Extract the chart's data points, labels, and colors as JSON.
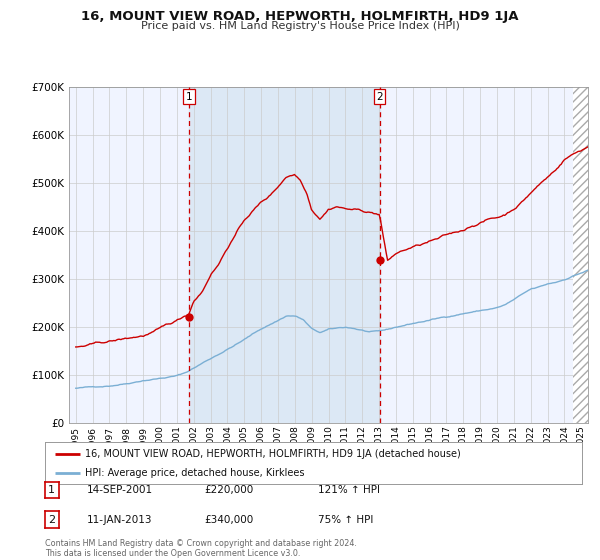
{
  "title": "16, MOUNT VIEW ROAD, HEPWORTH, HOLMFIRTH, HD9 1JA",
  "subtitle": "Price paid vs. HM Land Registry's House Price Index (HPI)",
  "legend_line1": "16, MOUNT VIEW ROAD, HEPWORTH, HOLMFIRTH, HD9 1JA (detached house)",
  "legend_line2": "HPI: Average price, detached house, Kirklees",
  "transaction1_date": "14-SEP-2001",
  "transaction1_price": "£220,000",
  "transaction1_pct": "121% ↑ HPI",
  "transaction2_date": "11-JAN-2013",
  "transaction2_price": "£340,000",
  "transaction2_pct": "75% ↑ HPI",
  "footer": "Contains HM Land Registry data © Crown copyright and database right 2024.\nThis data is licensed under the Open Government Licence v3.0.",
  "red_color": "#cc0000",
  "blue_color": "#7bafd4",
  "bg_color": "#ffffff",
  "plot_bg": "#f0f4ff",
  "shade_color": "#dce8f5",
  "grid_color": "#cccccc",
  "ylim": [
    0,
    700000
  ],
  "yticks": [
    0,
    100000,
    200000,
    300000,
    400000,
    500000,
    600000,
    700000
  ],
  "transaction1_x": 2001.71,
  "transaction2_x": 2013.03,
  "xmin": 1994.6,
  "xmax": 2025.4,
  "hatch_start": 2024.5
}
